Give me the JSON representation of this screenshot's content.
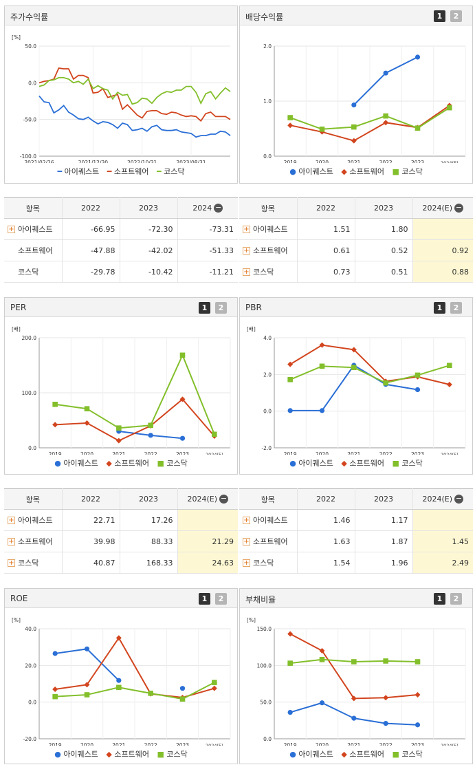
{
  "colors": {
    "company": "#2a6fd6",
    "industry": "#d2451e",
    "market": "#83bf2b"
  },
  "legend_labels": [
    "아이퀘스트",
    "소프트웨어",
    "코스닥"
  ],
  "tabs": [
    "1",
    "2"
  ],
  "tables": {
    "stock": {
      "headers": [
        "항목",
        "2022",
        "2023",
        "2024"
      ],
      "rows": [
        {
          "name": "아이퀘스트",
          "plus": true,
          "values": [
            "-66.95",
            "-72.30",
            "-73.31"
          ]
        },
        {
          "name": "소프트웨어",
          "plus": false,
          "values": [
            "-47.88",
            "-42.02",
            "-51.33"
          ]
        },
        {
          "name": "코스닥",
          "plus": false,
          "values": [
            "-29.78",
            "-10.42",
            "-11.21"
          ]
        }
      ]
    },
    "dividend": {
      "headers": [
        "항목",
        "2022",
        "2023",
        "2024(E)"
      ],
      "rows": [
        {
          "name": "아이퀘스트",
          "plus": true,
          "values": [
            "1.51",
            "1.80",
            ""
          ]
        },
        {
          "name": "소프트웨어",
          "plus": true,
          "values": [
            "0.61",
            "0.52",
            "0.92"
          ]
        },
        {
          "name": "코스닥",
          "plus": true,
          "values": [
            "0.73",
            "0.51",
            "0.88"
          ]
        }
      ]
    },
    "per": {
      "headers": [
        "항목",
        "2022",
        "2023",
        "2024(E)"
      ],
      "rows": [
        {
          "name": "아이퀘스트",
          "plus": true,
          "values": [
            "22.71",
            "17.26",
            ""
          ]
        },
        {
          "name": "소프트웨어",
          "plus": true,
          "values": [
            "39.98",
            "88.33",
            "21.29"
          ]
        },
        {
          "name": "코스닥",
          "plus": true,
          "values": [
            "40.87",
            "168.33",
            "24.63"
          ]
        }
      ]
    },
    "pbr": {
      "headers": [
        "항목",
        "2022",
        "2023",
        "2024(E)"
      ],
      "rows": [
        {
          "name": "아이퀘스트",
          "plus": true,
          "values": [
            "1.46",
            "1.17",
            ""
          ]
        },
        {
          "name": "소프트웨어",
          "plus": true,
          "values": [
            "1.63",
            "1.87",
            "1.45"
          ]
        },
        {
          "name": "코스닥",
          "plus": true,
          "values": [
            "1.54",
            "1.96",
            "2.49"
          ]
        }
      ]
    }
  },
  "chart_data": [
    {
      "id": "stock",
      "type": "line",
      "title": "주가수익률",
      "unit": "[%]",
      "ylim": [
        -100,
        50
      ],
      "yticks": [
        "50.0",
        "0.0",
        "-50.0",
        "-100.0"
      ],
      "x_tick_labels": [
        "2021/02/26",
        "2021/12/30",
        "2022/10/31",
        "2023/08/31"
      ],
      "series": [
        {
          "name": "아이퀘스트",
          "values": [
            -18,
            -26,
            -27,
            -41,
            -37,
            -31,
            -40,
            -44,
            -49,
            -50,
            -47,
            -52,
            -56,
            -53,
            -54,
            -57,
            -62,
            -55,
            -57,
            -65,
            -64,
            -62,
            -66,
            -60,
            -58,
            -64,
            -65,
            -65,
            -64,
            -67,
            -68,
            -69,
            -74,
            -72,
            -72,
            -70,
            -70,
            -66,
            -67,
            -72
          ]
        },
        {
          "name": "소프트웨어",
          "values": [
            0,
            2,
            3,
            5,
            20,
            19,
            19,
            5,
            10,
            10,
            7,
            -14,
            -13,
            -8,
            -20,
            -18,
            -16,
            -36,
            -30,
            -37,
            -44,
            -48,
            -39,
            -38,
            -38,
            -42,
            -43,
            -40,
            -41,
            -44,
            -46,
            -45,
            -46,
            -52,
            -42,
            -40,
            -46,
            -46,
            -46,
            -50
          ]
        },
        {
          "name": "코스닥",
          "values": [
            -5,
            -3,
            3,
            4,
            7,
            7,
            5,
            0,
            2,
            -2,
            5,
            -8,
            -4,
            -8,
            -10,
            -22,
            -13,
            -17,
            -16,
            -29,
            -27,
            -21,
            -22,
            -28,
            -20,
            -15,
            -12,
            -13,
            -10,
            -10,
            -5,
            -5,
            -13,
            -28,
            -15,
            -12,
            -22,
            -14,
            -7,
            -12
          ]
        }
      ]
    },
    {
      "id": "dividend",
      "type": "line",
      "title": "배당수익률",
      "unit": "",
      "ylim": [
        0,
        2
      ],
      "yticks": [
        "2.0",
        "1.0",
        "0.0"
      ],
      "categories": [
        "2019",
        "2020",
        "2021",
        "2022",
        "2023",
        "2024(E)"
      ],
      "series": [
        {
          "name": "아이퀘스트",
          "values": [
            null,
            null,
            0.93,
            1.51,
            1.8,
            null
          ]
        },
        {
          "name": "소프트웨어",
          "values": [
            0.56,
            0.44,
            0.28,
            0.61,
            0.52,
            0.92
          ]
        },
        {
          "name": "코스닥",
          "values": [
            0.7,
            0.49,
            0.53,
            0.73,
            0.51,
            0.88
          ]
        }
      ]
    },
    {
      "id": "per",
      "type": "line",
      "title": "PER",
      "unit": "[배]",
      "ylim": [
        0,
        200
      ],
      "yticks": [
        "200.0",
        "100.0",
        "0.0"
      ],
      "categories": [
        "2019",
        "2020",
        "2021",
        "2022",
        "2023",
        "2024(E)"
      ],
      "series": [
        {
          "name": "아이퀘스트",
          "values": [
            null,
            null,
            30,
            22.71,
            17.26,
            null
          ]
        },
        {
          "name": "소프트웨어",
          "values": [
            42,
            45,
            13,
            39.98,
            88.33,
            21.29
          ]
        },
        {
          "name": "코스닥",
          "values": [
            79,
            71,
            36,
            40.87,
            168.33,
            24.63
          ]
        }
      ]
    },
    {
      "id": "pbr",
      "type": "line",
      "title": "PBR",
      "unit": "[배]",
      "ylim": [
        -2,
        4
      ],
      "yticks": [
        "4.0",
        "2.0",
        "0.0",
        "-2.0"
      ],
      "categories": [
        "2019",
        "2020",
        "2021",
        "2022",
        "2023",
        "2024(E)"
      ],
      "series": [
        {
          "name": "아이퀘스트",
          "values": [
            0.03,
            0.03,
            2.5,
            1.46,
            1.17,
            null
          ]
        },
        {
          "name": "소프트웨어",
          "values": [
            2.55,
            3.6,
            3.35,
            1.63,
            1.87,
            1.45
          ]
        },
        {
          "name": "코스닥",
          "values": [
            1.72,
            2.45,
            2.38,
            1.54,
            1.96,
            2.49
          ]
        }
      ]
    },
    {
      "id": "roe",
      "type": "line",
      "title": "ROE",
      "unit": "[%]",
      "ylim": [
        -20,
        40
      ],
      "yticks": [
        "40.0",
        "20.0",
        "0.0",
        "-20.0"
      ],
      "categories": [
        "2019",
        "2020",
        "2021",
        "2022",
        "2023",
        "2024(E)"
      ],
      "series": [
        {
          "name": "아이퀘스트",
          "values": [
            26.5,
            29,
            11.8,
            null,
            7.5,
            null
          ]
        },
        {
          "name": "소프트웨어",
          "values": [
            7,
            9.5,
            35,
            4.5,
            2.5,
            7.5
          ]
        },
        {
          "name": "코스닥",
          "values": [
            3,
            4,
            8,
            4.8,
            1.7,
            10.7
          ]
        }
      ]
    },
    {
      "id": "debt",
      "type": "line",
      "title": "부채비율",
      "unit": "[%]",
      "ylim": [
        0,
        150
      ],
      "yticks": [
        "150.0",
        "100.0",
        "50.0",
        "0.0"
      ],
      "categories": [
        "2019",
        "2020",
        "2021",
        "2022",
        "2023",
        "2024(E)"
      ],
      "series": [
        {
          "name": "아이퀘스트",
          "values": [
            36,
            49,
            28,
            21,
            19,
            null
          ]
        },
        {
          "name": "소프트웨어",
          "values": [
            143,
            120,
            55,
            56,
            60,
            null
          ]
        },
        {
          "name": "코스닥",
          "values": [
            103,
            108,
            105,
            106,
            105,
            null
          ]
        }
      ]
    }
  ]
}
